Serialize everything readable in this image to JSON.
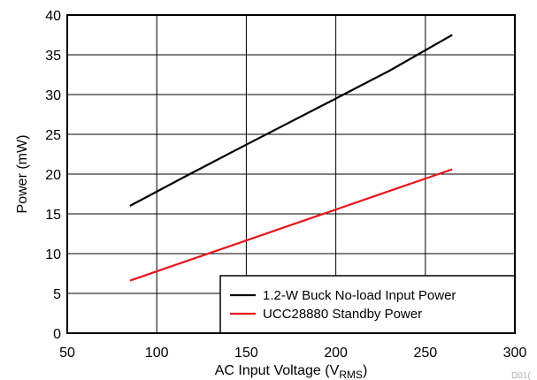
{
  "chart_data": {
    "type": "line",
    "xlabel": "AC Input Voltage (V",
    "xlabel_sub": "RMS",
    "xlabel_close": ")",
    "ylabel": "Power (mW)",
    "xlim": [
      50,
      300
    ],
    "ylim": [
      0,
      40
    ],
    "x_ticks": [
      50,
      100,
      150,
      200,
      250,
      300
    ],
    "y_ticks": [
      0,
      5,
      10,
      15,
      20,
      25,
      30,
      35,
      40
    ],
    "grid": true,
    "legend_position": "bottom-right",
    "series": [
      {
        "name": "1.2-W Buck No-load Input Power",
        "color": "#000000",
        "x": [
          85,
          115,
          150,
          200,
          230,
          265
        ],
        "y": [
          16.0,
          19.6,
          23.7,
          29.5,
          33.0,
          37.5
        ]
      },
      {
        "name": "UCC28880 Standby Power",
        "color": "#e8141c",
        "x": [
          85,
          130,
          175,
          220,
          265
        ],
        "y": [
          6.6,
          10.1,
          13.6,
          17.1,
          20.6
        ]
      }
    ],
    "code_label": "D01("
  }
}
